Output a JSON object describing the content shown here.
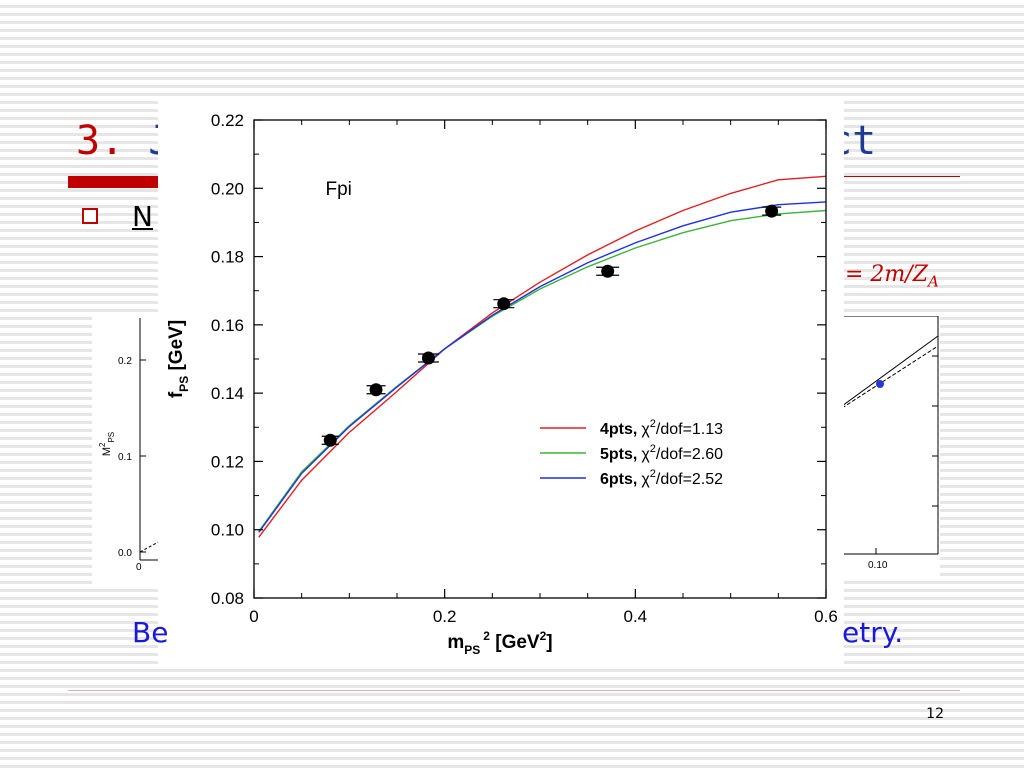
{
  "slide": {
    "title_number": "3.",
    "title_visible_start": "J",
    "title_visible_end": "ct",
    "bullet_visible_text": "N",
    "formula_visible": "= 2m/Z",
    "formula_subscript": "A",
    "bottom_visible_start": "Be",
    "bottom_visible_end": "etry.",
    "page_number": "12"
  },
  "bg_plot_left": {
    "ylabel": "M",
    "ylabel_sup": "2",
    "ylabel_sub": "PS",
    "ytick_labels": [
      "0.2",
      "0.1",
      "0.0"
    ],
    "xtick_label": "0"
  },
  "bg_plot_right": {
    "xtick_label": "0.10",
    "point_color": "#1f3ad6"
  },
  "chart_data": {
    "type": "scatter",
    "annotation": "Fpi",
    "xlabel": {
      "base": "m",
      "sub": "PS",
      "sup": "2",
      "unit": " [GeV",
      "unit_sup": "2",
      "unit_end": "]"
    },
    "ylabel": {
      "base": "f",
      "sub": "PS",
      "unit": " [GeV]"
    },
    "xlim": [
      0,
      0.6
    ],
    "ylim": [
      0.08,
      0.22
    ],
    "xticks": [
      0,
      0.2,
      0.4,
      0.6
    ],
    "xtick_labels": [
      "0",
      "0.2",
      "0.4",
      "0.6"
    ],
    "yticks": [
      0.08,
      0.1,
      0.12,
      0.14,
      0.16,
      0.18,
      0.2,
      0.22
    ],
    "ytick_labels": [
      "0.08",
      "0.10",
      "0.12",
      "0.14",
      "0.16",
      "0.18",
      "0.20",
      "0.22"
    ],
    "points": [
      {
        "x": 0.08,
        "y": 0.1262,
        "xerr": 0.009
      },
      {
        "x": 0.128,
        "y": 0.141,
        "xerr": 0.01
      },
      {
        "x": 0.183,
        "y": 0.1503,
        "xerr": 0.011
      },
      {
        "x": 0.262,
        "y": 0.1662,
        "xerr": 0.011
      },
      {
        "x": 0.371,
        "y": 0.1757,
        "xerr": 0.012
      },
      {
        "x": 0.543,
        "y": 0.1933,
        "xerr": 0.01
      }
    ],
    "series": [
      {
        "label_bold": "4pts,",
        "label_chi": "χ",
        "label_sup": "2",
        "label_rest": "/dof=1.13",
        "color": "#e02020",
        "curve": [
          [
            0.005,
            0.0978
          ],
          [
            0.05,
            0.1145
          ],
          [
            0.1,
            0.1285
          ],
          [
            0.15,
            0.1405
          ],
          [
            0.2,
            0.153
          ],
          [
            0.25,
            0.1635
          ],
          [
            0.3,
            0.1725
          ],
          [
            0.35,
            0.1805
          ],
          [
            0.4,
            0.1875
          ],
          [
            0.45,
            0.1935
          ],
          [
            0.5,
            0.1985
          ],
          [
            0.55,
            0.2025
          ],
          [
            0.6,
            0.2035
          ]
        ]
      },
      {
        "label_bold": "5pts,",
        "label_chi": "χ",
        "label_sup": "2",
        "label_rest": "/dof=2.60",
        "color": "#3cb43c",
        "curve": [
          [
            0.005,
            0.0995
          ],
          [
            0.05,
            0.117
          ],
          [
            0.1,
            0.1305
          ],
          [
            0.15,
            0.142
          ],
          [
            0.2,
            0.153
          ],
          [
            0.25,
            0.1625
          ],
          [
            0.3,
            0.1705
          ],
          [
            0.35,
            0.177
          ],
          [
            0.4,
            0.1825
          ],
          [
            0.45,
            0.187
          ],
          [
            0.5,
            0.1905
          ],
          [
            0.55,
            0.1925
          ],
          [
            0.6,
            0.1935
          ]
        ]
      },
      {
        "label_bold": "6pts,",
        "label_chi": "χ",
        "label_sup": "2",
        "label_rest": "/dof=2.52",
        "color": "#2030e0",
        "curve": [
          [
            0.005,
            0.0992
          ],
          [
            0.05,
            0.1165
          ],
          [
            0.1,
            0.1302
          ],
          [
            0.15,
            0.1418
          ],
          [
            0.2,
            0.153
          ],
          [
            0.25,
            0.1628
          ],
          [
            0.3,
            0.1712
          ],
          [
            0.35,
            0.1782
          ],
          [
            0.4,
            0.184
          ],
          [
            0.45,
            0.189
          ],
          [
            0.5,
            0.193
          ],
          [
            0.55,
            0.1952
          ],
          [
            0.6,
            0.196
          ]
        ]
      }
    ]
  }
}
